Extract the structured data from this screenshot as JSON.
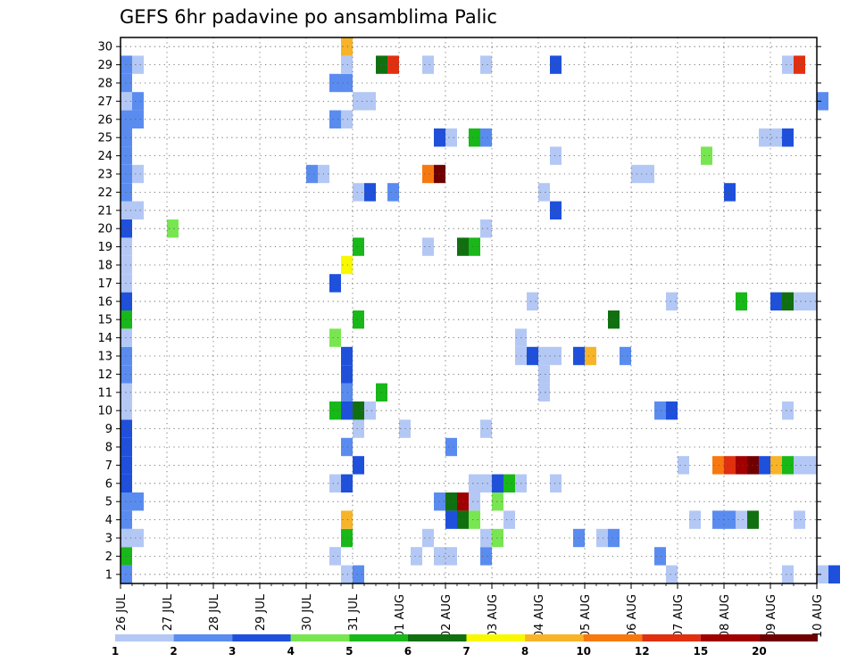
{
  "chart_data": {
    "type": "heatmap",
    "title": "GEFS 6hr padavine po ansamblima Palic",
    "xlabel": "",
    "ylabel": "",
    "x_tick_labels": [
      "26 JUL",
      "27 JUL",
      "28 JUL",
      "29 JUL",
      "30 JUL",
      "31 JUL",
      "01 AUG",
      "02 AUG",
      "03 AUG",
      "04 AUG",
      "05 AUG",
      "06 AUG",
      "07 AUG",
      "08 AUG",
      "09 AUG",
      "10 AUG"
    ],
    "y_tick_labels": [
      "1",
      "2",
      "3",
      "4",
      "5",
      "6",
      "7",
      "8",
      "9",
      "10",
      "11",
      "12",
      "13",
      "14",
      "15",
      "16",
      "17",
      "18",
      "19",
      "20",
      "21",
      "22",
      "23",
      "24",
      "25",
      "26",
      "27",
      "28",
      "29",
      "30"
    ],
    "x_range_days": [
      0,
      15
    ],
    "y_range": [
      0,
      30
    ],
    "grid": true,
    "legend_position": "bottom",
    "color_levels": [
      1,
      2,
      3,
      4,
      5,
      6,
      7,
      8,
      10,
      12,
      15,
      20
    ],
    "color_level_labels": [
      "1",
      "2",
      "3",
      "4",
      "5",
      "6",
      "7",
      "8",
      "10",
      "12",
      "15",
      "20"
    ],
    "color_palette": [
      "#b4c8f5",
      "#5a8cf0",
      "#1e50dc",
      "#78e650",
      "#18b818",
      "#107010",
      "#f8f800",
      "#f8b428",
      "#f87810",
      "#e03010",
      "#a00000",
      "#700000"
    ],
    "cells": [
      [
        0.25,
        0,
        1
      ],
      [
        0.25,
        1,
        4
      ],
      [
        0.25,
        2,
        0
      ],
      [
        0.25,
        3,
        1
      ],
      [
        0.25,
        4,
        1
      ],
      [
        0.25,
        5,
        2
      ],
      [
        0.25,
        6,
        2
      ],
      [
        0.25,
        7,
        2
      ],
      [
        0.25,
        8,
        2
      ],
      [
        0.25,
        9,
        0
      ],
      [
        0.25,
        10,
        0
      ],
      [
        0.25,
        11,
        1
      ],
      [
        0.25,
        12,
        1
      ],
      [
        0.25,
        13,
        0
      ],
      [
        0.25,
        14,
        4
      ],
      [
        0.25,
        15,
        2
      ],
      [
        0.25,
        16,
        0
      ],
      [
        0.25,
        17,
        0
      ],
      [
        0.25,
        18,
        0
      ],
      [
        0.25,
        19,
        2
      ],
      [
        0.25,
        20,
        0
      ],
      [
        0.25,
        21,
        1
      ],
      [
        0.25,
        22,
        1
      ],
      [
        0.25,
        23,
        1
      ],
      [
        0.25,
        24,
        1
      ],
      [
        0.25,
        25,
        1
      ],
      [
        0.25,
        26,
        0
      ],
      [
        0.25,
        27,
        1
      ],
      [
        0.25,
        28,
        1
      ],
      [
        0.5,
        20,
        0
      ],
      [
        0.5,
        22,
        0
      ],
      [
        0.5,
        25,
        1
      ],
      [
        0.5,
        26,
        1
      ],
      [
        0.5,
        28,
        0
      ],
      [
        0.5,
        2,
        0
      ],
      [
        0.5,
        4,
        1
      ],
      [
        1.25,
        19,
        3
      ],
      [
        4.25,
        22,
        1
      ],
      [
        4.5,
        22,
        0
      ],
      [
        4.75,
        1,
        0
      ],
      [
        4.75,
        5,
        0
      ],
      [
        4.75,
        9,
        4
      ],
      [
        4.75,
        13,
        3
      ],
      [
        4.75,
        16,
        2
      ],
      [
        4.75,
        25,
        1
      ],
      [
        4.75,
        27,
        1
      ],
      [
        5.0,
        0,
        0
      ],
      [
        5.0,
        2,
        4
      ],
      [
        5.0,
        3,
        7
      ],
      [
        5.0,
        5,
        2
      ],
      [
        5.0,
        7,
        1
      ],
      [
        5.0,
        9,
        0
      ],
      [
        5.0,
        9,
        2
      ],
      [
        5.0,
        10,
        1
      ],
      [
        5.0,
        11,
        2
      ],
      [
        5.0,
        12,
        2
      ],
      [
        5.0,
        17,
        6
      ],
      [
        5.0,
        25,
        0
      ],
      [
        5.0,
        27,
        1
      ],
      [
        5.0,
        28,
        0
      ],
      [
        5.0,
        29,
        7
      ],
      [
        5.25,
        0,
        1
      ],
      [
        5.25,
        6,
        2
      ],
      [
        5.25,
        8,
        0
      ],
      [
        5.25,
        9,
        5
      ],
      [
        5.25,
        14,
        4
      ],
      [
        5.25,
        18,
        4
      ],
      [
        5.25,
        21,
        0
      ],
      [
        5.25,
        26,
        0
      ],
      [
        5.5,
        9,
        0
      ],
      [
        5.5,
        21,
        2
      ],
      [
        5.5,
        26,
        0
      ],
      [
        5.75,
        10,
        4
      ],
      [
        5.75,
        28,
        5
      ],
      [
        6.0,
        28,
        9
      ],
      [
        6.0,
        21,
        1
      ],
      [
        6.25,
        8,
        0
      ],
      [
        6.5,
        1,
        0
      ],
      [
        6.75,
        2,
        0
      ],
      [
        6.75,
        18,
        0
      ],
      [
        6.75,
        22,
        8
      ],
      [
        6.75,
        28,
        0
      ],
      [
        7.0,
        1,
        0
      ],
      [
        7.0,
        4,
        1
      ],
      [
        7.0,
        22,
        11
      ],
      [
        7.0,
        24,
        2
      ],
      [
        7.25,
        1,
        0
      ],
      [
        7.25,
        3,
        2
      ],
      [
        7.25,
        4,
        5
      ],
      [
        7.25,
        7,
        1
      ],
      [
        7.25,
        24,
        0
      ],
      [
        7.5,
        3,
        5
      ],
      [
        7.5,
        4,
        10
      ],
      [
        7.5,
        18,
        5
      ],
      [
        7.75,
        3,
        3
      ],
      [
        7.75,
        4,
        0
      ],
      [
        7.75,
        5,
        0
      ],
      [
        7.75,
        18,
        4
      ],
      [
        7.75,
        24,
        4
      ],
      [
        8.0,
        1,
        1
      ],
      [
        8.0,
        2,
        0
      ],
      [
        8.0,
        5,
        0
      ],
      [
        8.0,
        8,
        0
      ],
      [
        8.0,
        19,
        0
      ],
      [
        8.0,
        24,
        1
      ],
      [
        8.0,
        28,
        0
      ],
      [
        8.25,
        2,
        3
      ],
      [
        8.25,
        4,
        3
      ],
      [
        8.25,
        5,
        2
      ],
      [
        8.5,
        3,
        0
      ],
      [
        8.5,
        5,
        4
      ],
      [
        8.75,
        5,
        0
      ],
      [
        8.75,
        12,
        0
      ],
      [
        8.75,
        13,
        0
      ],
      [
        9.0,
        12,
        2
      ],
      [
        9.0,
        15,
        0
      ],
      [
        9.25,
        10,
        0
      ],
      [
        9.25,
        11,
        0
      ],
      [
        9.25,
        12,
        0
      ],
      [
        9.25,
        21,
        0
      ],
      [
        9.5,
        5,
        0
      ],
      [
        9.5,
        12,
        0
      ],
      [
        9.5,
        20,
        2
      ],
      [
        9.5,
        23,
        0
      ],
      [
        9.5,
        28,
        2
      ],
      [
        10.0,
        12,
        2
      ],
      [
        10.0,
        2,
        1
      ],
      [
        10.25,
        12,
        7
      ],
      [
        10.5,
        2,
        0
      ],
      [
        10.75,
        2,
        1
      ],
      [
        10.75,
        14,
        5
      ],
      [
        11.0,
        12,
        1
      ],
      [
        11.25,
        22,
        0
      ],
      [
        11.5,
        22,
        0
      ],
      [
        11.75,
        1,
        1
      ],
      [
        11.75,
        9,
        1
      ],
      [
        12.0,
        9,
        2
      ],
      [
        12.0,
        15,
        0
      ],
      [
        12.0,
        0,
        0
      ],
      [
        12.25,
        6,
        0
      ],
      [
        12.5,
        3,
        0
      ],
      [
        12.75,
        23,
        3
      ],
      [
        13.0,
        6,
        8
      ],
      [
        13.0,
        3,
        1
      ],
      [
        13.25,
        3,
        1
      ],
      [
        13.25,
        6,
        9
      ],
      [
        13.25,
        21,
        2
      ],
      [
        13.5,
        6,
        10
      ],
      [
        13.5,
        3,
        0
      ],
      [
        13.5,
        15,
        4
      ],
      [
        13.75,
        6,
        11
      ],
      [
        13.75,
        3,
        5
      ],
      [
        14.0,
        6,
        2
      ],
      [
        14.0,
        24,
        0
      ],
      [
        14.25,
        6,
        7
      ],
      [
        14.25,
        15,
        2
      ],
      [
        14.25,
        24,
        0
      ],
      [
        14.5,
        6,
        4
      ],
      [
        14.5,
        15,
        5
      ],
      [
        14.5,
        24,
        0
      ],
      [
        14.5,
        24,
        2
      ],
      [
        14.5,
        9,
        0
      ],
      [
        14.5,
        28,
        0
      ],
      [
        14.5,
        0,
        0
      ],
      [
        14.75,
        6,
        0
      ],
      [
        14.75,
        15,
        0
      ],
      [
        14.75,
        28,
        9
      ],
      [
        14.75,
        3,
        0
      ],
      [
        15.0,
        6,
        0
      ],
      [
        15.0,
        15,
        0
      ],
      [
        15.25,
        0,
        0
      ],
      [
        15.25,
        26,
        1
      ],
      [
        15.5,
        0,
        2
      ]
    ]
  }
}
